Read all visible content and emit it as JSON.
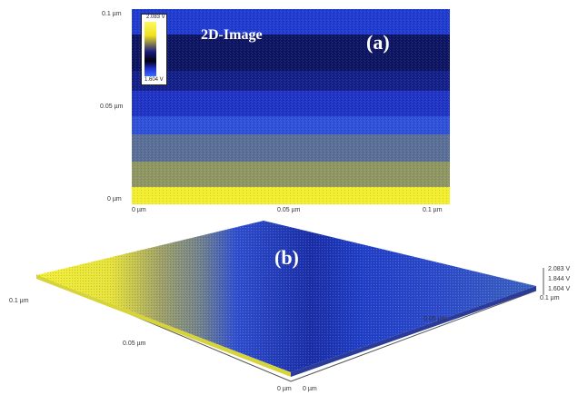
{
  "panel_a": {
    "title": "2D-Image",
    "tag": "(a)",
    "y_ticks": [
      "0.1 µm",
      "0.05 µm",
      "0 µm"
    ],
    "x_ticks": [
      "0 µm",
      "0.05 µm",
      "0.1 µm"
    ],
    "colorbar": {
      "max_label": "2.083 V",
      "min_label": "1.604 V"
    }
  },
  "panel_b": {
    "tag": "(b)",
    "z_ticks": [
      "2.083 V",
      "1.844 V",
      "1.604 V"
    ],
    "right_axis_label": "0.1 µm",
    "left_axis_label": "0.1 µm",
    "left_mid_label": "0.05 µm",
    "right_mid_label": "0.05 µm",
    "origin_left_label": "0 µm",
    "origin_right_label": "0 µm"
  },
  "colors": {
    "dark_navy": "#101a6e",
    "blue": "#2c48d8",
    "light_blue": "#3c6fd8",
    "grayish": "#6f7f8e",
    "olive": "#9aa060",
    "yellow": "#f2ef30"
  }
}
